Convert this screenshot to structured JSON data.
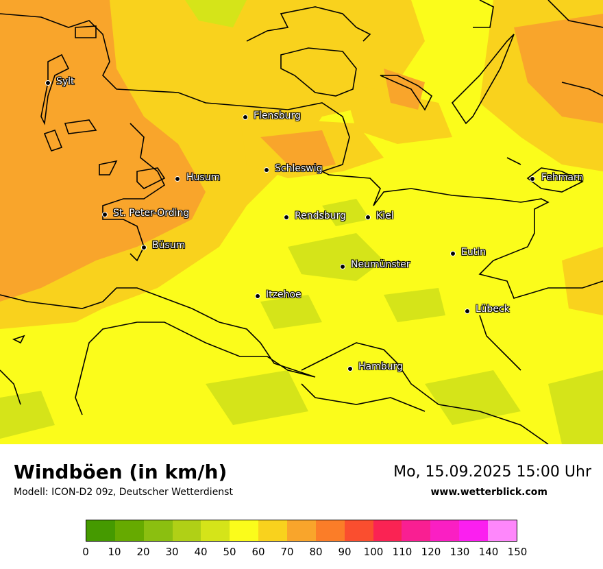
{
  "map": {
    "places": [
      {
        "name": "Sylt"
      },
      {
        "name": "Flensburg"
      },
      {
        "name": "Schleswig"
      },
      {
        "name": "Husum"
      },
      {
        "name": "St. Peter-Ording"
      },
      {
        "name": "Büsum"
      },
      {
        "name": "Rendsburg"
      },
      {
        "name": "Kiel"
      },
      {
        "name": "Fehmarn"
      },
      {
        "name": "Eutin"
      },
      {
        "name": "Neumünster"
      },
      {
        "name": "Itzehoe"
      },
      {
        "name": "Lübeck"
      },
      {
        "name": "Hamburg"
      }
    ]
  },
  "header": {
    "title": "Windböen (in km/h)",
    "subtitle": "Modell: ICON-D2 09z, Deutscher Wetterdienst",
    "datetime": "Mo, 15.09.2025 15:00 Uhr",
    "website": "www.wetterblick.com"
  },
  "legend": {
    "ticks": [
      "0",
      "10",
      "20",
      "30",
      "40",
      "50",
      "60",
      "70",
      "80",
      "90",
      "100",
      "110",
      "120",
      "130",
      "140",
      "150"
    ],
    "colors": [
      "#459a00",
      "#66aa00",
      "#8bbf10",
      "#b0d016",
      "#d5e419",
      "#fbfc1b",
      "#f9d21d",
      "#f9a52b",
      "#fb7d28",
      "#fa4e2f",
      "#fa2353",
      "#f91f92",
      "#fa1fc3",
      "#fb1ff0",
      "#fe87fb"
    ]
  }
}
